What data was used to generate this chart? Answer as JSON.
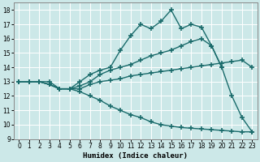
{
  "xlabel": "Humidex (Indice chaleur)",
  "xlim": [
    -0.5,
    23.5
  ],
  "ylim": [
    9,
    18.5
  ],
  "xticks": [
    0,
    1,
    2,
    3,
    4,
    5,
    6,
    7,
    8,
    9,
    10,
    11,
    12,
    13,
    14,
    15,
    16,
    17,
    18,
    19,
    20,
    21,
    22,
    23
  ],
  "yticks": [
    9,
    10,
    11,
    12,
    13,
    14,
    15,
    16,
    17,
    18
  ],
  "background_color": "#cce8e8",
  "grid_color": "#b0d4d4",
  "line_color": "#1a6b6b",
  "lines": [
    {
      "x": [
        0,
        1,
        2,
        3,
        4,
        5,
        6,
        7,
        8,
        9,
        10,
        11,
        12,
        13,
        14,
        15,
        16,
        17,
        18,
        19,
        20,
        21,
        22,
        23
      ],
      "y": [
        13,
        13,
        13,
        13,
        12.5,
        12.5,
        13,
        13.5,
        13.8,
        14.0,
        15.2,
        16.2,
        17.0,
        16.7,
        17.2,
        18.0,
        16.7,
        17.0,
        16.8,
        15.5,
        14.0,
        12.0,
        10.5,
        9.5
      ]
    },
    {
      "x": [
        0,
        1,
        2,
        3,
        4,
        5,
        6,
        7,
        8,
        9,
        10,
        11,
        12,
        13,
        14,
        15,
        16,
        17,
        18,
        19,
        20
      ],
      "y": [
        13,
        13,
        13,
        12.8,
        12.5,
        12.5,
        12.7,
        13.0,
        13.5,
        13.8,
        14.0,
        14.2,
        14.5,
        14.8,
        15.0,
        15.2,
        15.5,
        15.8,
        16.0,
        15.5,
        14.0
      ]
    },
    {
      "x": [
        0,
        1,
        2,
        3,
        4,
        5,
        6,
        7,
        8,
        9,
        10,
        11,
        12,
        13,
        14,
        15,
        16,
        17,
        18,
        19,
        20,
        21,
        22,
        23
      ],
      "y": [
        13,
        13,
        13,
        12.8,
        12.5,
        12.5,
        12.5,
        12.8,
        13.0,
        13.1,
        13.2,
        13.4,
        13.5,
        13.6,
        13.7,
        13.8,
        13.9,
        14.0,
        14.1,
        14.2,
        14.3,
        14.4,
        14.5,
        14.0
      ]
    },
    {
      "x": [
        0,
        1,
        2,
        3,
        4,
        5,
        6,
        7,
        8,
        9,
        10,
        11,
        12,
        13,
        14,
        15,
        16,
        17,
        18,
        19,
        20,
        21,
        22,
        23
      ],
      "y": [
        13,
        13,
        13,
        12.8,
        12.5,
        12.5,
        12.3,
        12.0,
        11.7,
        11.3,
        11.0,
        10.7,
        10.5,
        10.2,
        10.0,
        9.9,
        9.8,
        9.75,
        9.7,
        9.65,
        9.6,
        9.55,
        9.5,
        9.5
      ]
    }
  ],
  "marker": "+",
  "markersize": 4,
  "linewidth": 1.0
}
